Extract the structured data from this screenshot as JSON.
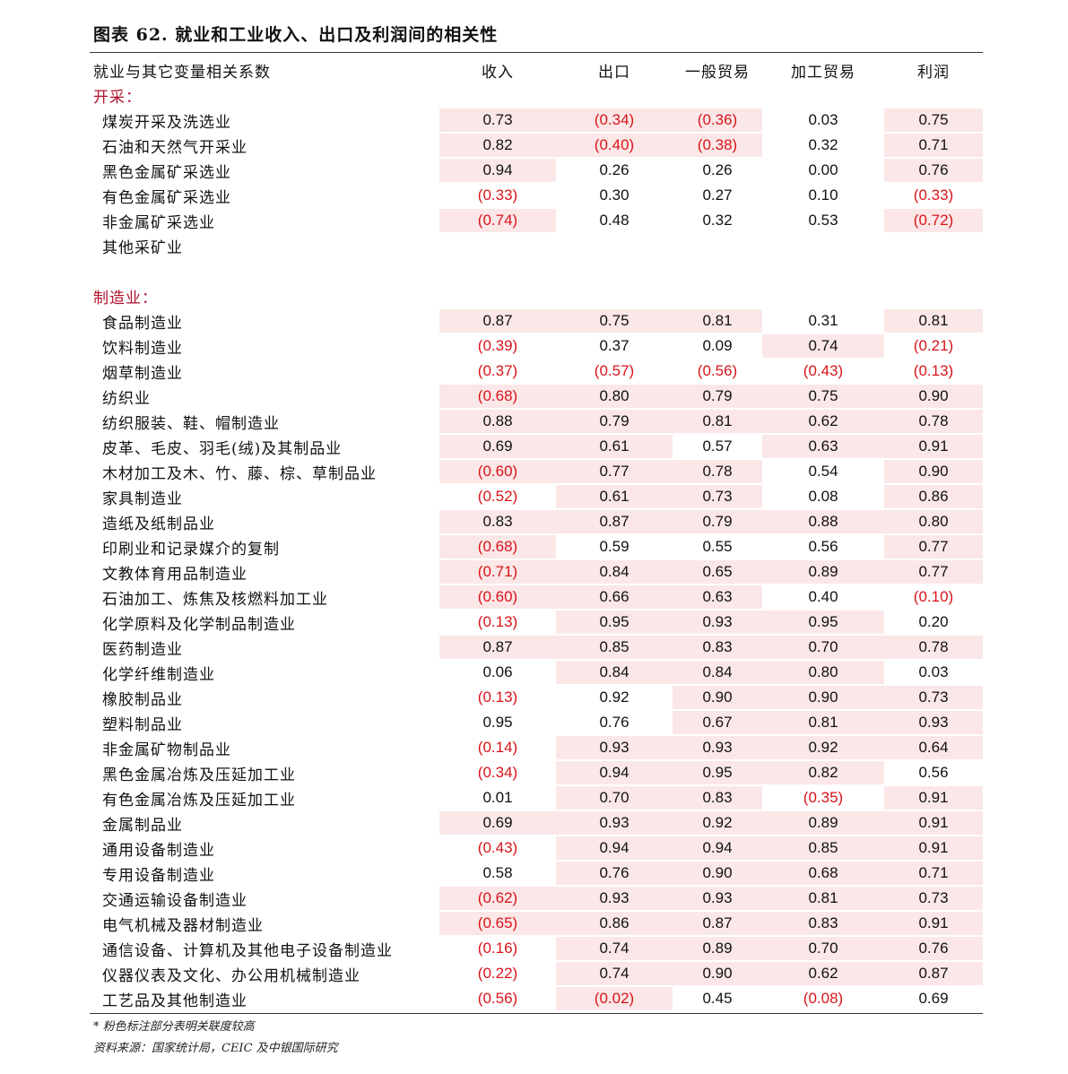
{
  "title": "图表 62. 就业和工业收入、出口及利润间的相关性",
  "colors": {
    "highlight": "#fbe7e7",
    "negative": "#d8141a",
    "section": "#b0122c"
  },
  "header": [
    "就业与其它变量相关系数",
    "收入",
    "出口",
    "一般贸易",
    "加工贸易",
    "利润"
  ],
  "sections": [
    {
      "name": "开采：",
      "rows": [
        {
          "label": "煤炭开采及洗选业",
          "values": [
            "0.73",
            "(0.34)",
            "(0.36)",
            "0.03",
            "0.75"
          ],
          "highlight": [
            1,
            1,
            1,
            0,
            1
          ]
        },
        {
          "label": "石油和天然气开采业",
          "values": [
            "0.82",
            "(0.40)",
            "(0.38)",
            "0.32",
            "0.71"
          ],
          "highlight": [
            1,
            1,
            1,
            0,
            1
          ]
        },
        {
          "label": "黑色金属矿采选业",
          "values": [
            "0.94",
            "0.26",
            "0.26",
            "0.00",
            "0.76"
          ],
          "highlight": [
            1,
            0,
            0,
            0,
            1
          ]
        },
        {
          "label": "有色金属矿采选业",
          "values": [
            "(0.33)",
            "0.30",
            "0.27",
            "0.10",
            "(0.33)"
          ],
          "highlight": [
            0,
            0,
            0,
            0,
            0
          ]
        },
        {
          "label": "非金属矿采选业",
          "values": [
            "(0.74)",
            "0.48",
            "0.32",
            "0.53",
            "(0.72)"
          ],
          "highlight": [
            1,
            0,
            0,
            0,
            1
          ]
        },
        {
          "label": "其他采矿业",
          "values": [
            "",
            "",
            "",
            "",
            ""
          ],
          "highlight": [
            0,
            0,
            0,
            0,
            0
          ]
        }
      ]
    },
    {
      "name": "制造业：",
      "rows": [
        {
          "label": "食品制造业",
          "values": [
            "0.87",
            "0.75",
            "0.81",
            "0.31",
            "0.81"
          ],
          "highlight": [
            1,
            1,
            1,
            0,
            1
          ]
        },
        {
          "label": "饮料制造业",
          "values": [
            "(0.39)",
            "0.37",
            "0.09",
            "0.74",
            "(0.21)"
          ],
          "highlight": [
            0,
            0,
            0,
            1,
            0
          ]
        },
        {
          "label": "烟草制造业",
          "values": [
            "(0.37)",
            "(0.57)",
            "(0.56)",
            "(0.43)",
            "(0.13)"
          ],
          "highlight": [
            0,
            0,
            0,
            0,
            0
          ]
        },
        {
          "label": "纺织业",
          "values": [
            "(0.68)",
            "0.80",
            "0.79",
            "0.75",
            "0.90"
          ],
          "highlight": [
            1,
            1,
            1,
            1,
            1
          ]
        },
        {
          "label": "纺织服装、鞋、帽制造业",
          "values": [
            "0.88",
            "0.79",
            "0.81",
            "0.62",
            "0.78"
          ],
          "highlight": [
            1,
            1,
            1,
            1,
            1
          ]
        },
        {
          "label": "皮革、毛皮、羽毛(绒)及其制品业",
          "values": [
            "0.69",
            "0.61",
            "0.57",
            "0.63",
            "0.91"
          ],
          "highlight": [
            1,
            1,
            0,
            1,
            1
          ]
        },
        {
          "label": "木材加工及木、竹、藤、棕、草制品业",
          "values": [
            "(0.60)",
            "0.77",
            "0.78",
            "0.54",
            "0.90"
          ],
          "highlight": [
            1,
            1,
            1,
            0,
            1
          ]
        },
        {
          "label": "家具制造业",
          "values": [
            "(0.52)",
            "0.61",
            "0.73",
            "0.08",
            "0.86"
          ],
          "highlight": [
            0,
            1,
            1,
            0,
            1
          ]
        },
        {
          "label": "造纸及纸制品业",
          "values": [
            "0.83",
            "0.87",
            "0.79",
            "0.88",
            "0.80"
          ],
          "highlight": [
            1,
            1,
            1,
            1,
            1
          ]
        },
        {
          "label": "印刷业和记录媒介的复制",
          "values": [
            "(0.68)",
            "0.59",
            "0.55",
            "0.56",
            "0.77"
          ],
          "highlight": [
            1,
            0,
            0,
            0,
            1
          ]
        },
        {
          "label": "文教体育用品制造业",
          "values": [
            "(0.71)",
            "0.84",
            "0.65",
            "0.89",
            "0.77"
          ],
          "highlight": [
            1,
            1,
            1,
            1,
            1
          ]
        },
        {
          "label": "石油加工、炼焦及核燃料加工业",
          "values": [
            "(0.60)",
            "0.66",
            "0.63",
            "0.40",
            "(0.10)"
          ],
          "highlight": [
            1,
            1,
            1,
            0,
            0
          ]
        },
        {
          "label": "化学原料及化学制品制造业",
          "values": [
            "(0.13)",
            "0.95",
            "0.93",
            "0.95",
            "0.20"
          ],
          "highlight": [
            0,
            1,
            1,
            1,
            0
          ]
        },
        {
          "label": "医药制造业",
          "values": [
            "0.87",
            "0.85",
            "0.83",
            "0.70",
            "0.78"
          ],
          "highlight": [
            1,
            1,
            1,
            1,
            1
          ]
        },
        {
          "label": "化学纤维制造业",
          "values": [
            "0.06",
            "0.84",
            "0.84",
            "0.80",
            "0.03"
          ],
          "highlight": [
            0,
            1,
            1,
            1,
            0
          ]
        },
        {
          "label": "橡胶制品业",
          "values": [
            "(0.13)",
            "0.92",
            "0.90",
            "0.90",
            "0.73"
          ],
          "highlight": [
            0,
            0,
            1,
            1,
            1
          ]
        },
        {
          "label": "塑料制品业",
          "values": [
            "0.95",
            "0.76",
            "0.67",
            "0.81",
            "0.93"
          ],
          "highlight": [
            0,
            0,
            1,
            1,
            1
          ]
        },
        {
          "label": "非金属矿物制品业",
          "values": [
            "(0.14)",
            "0.93",
            "0.93",
            "0.92",
            "0.64"
          ],
          "highlight": [
            0,
            1,
            1,
            1,
            1
          ]
        },
        {
          "label": "黑色金属冶炼及压延加工业",
          "values": [
            "(0.34)",
            "0.94",
            "0.95",
            "0.82",
            "0.56"
          ],
          "highlight": [
            0,
            1,
            1,
            1,
            0
          ]
        },
        {
          "label": "有色金属冶炼及压延加工业",
          "values": [
            "0.01",
            "0.70",
            "0.83",
            "(0.35)",
            "0.91"
          ],
          "highlight": [
            0,
            1,
            1,
            0,
            1
          ]
        },
        {
          "label": "金属制品业",
          "values": [
            "0.69",
            "0.93",
            "0.92",
            "0.89",
            "0.91"
          ],
          "highlight": [
            1,
            1,
            1,
            1,
            1
          ]
        },
        {
          "label": "通用设备制造业",
          "values": [
            "(0.43)",
            "0.94",
            "0.94",
            "0.85",
            "0.91"
          ],
          "highlight": [
            0,
            1,
            1,
            1,
            1
          ]
        },
        {
          "label": "专用设备制造业",
          "values": [
            "0.58",
            "0.76",
            "0.90",
            "0.68",
            "0.71"
          ],
          "highlight": [
            0,
            1,
            1,
            1,
            1
          ]
        },
        {
          "label": "交通运输设备制造业",
          "values": [
            "(0.62)",
            "0.93",
            "0.93",
            "0.81",
            "0.73"
          ],
          "highlight": [
            1,
            1,
            1,
            1,
            1
          ]
        },
        {
          "label": "电气机械及器材制造业",
          "values": [
            "(0.65)",
            "0.86",
            "0.87",
            "0.83",
            "0.91"
          ],
          "highlight": [
            1,
            1,
            1,
            1,
            1
          ]
        },
        {
          "label": "通信设备、计算机及其他电子设备制造业",
          "values": [
            "(0.16)",
            "0.74",
            "0.89",
            "0.70",
            "0.76"
          ],
          "highlight": [
            0,
            1,
            1,
            1,
            1
          ]
        },
        {
          "label": "仪器仪表及文化、办公用机械制造业",
          "values": [
            "(0.22)",
            "0.74",
            "0.90",
            "0.62",
            "0.87"
          ],
          "highlight": [
            0,
            1,
            1,
            1,
            1
          ]
        },
        {
          "label": "工艺品及其他制造业",
          "values": [
            "(0.56)",
            "(0.02)",
            "0.45",
            "(0.08)",
            "0.69"
          ],
          "highlight": [
            0,
            1,
            0,
            0,
            0
          ]
        }
      ]
    }
  ],
  "footnotes": {
    "note": "* 粉色标注部分表明关联度较高",
    "source": "资料来源：国家统计局，CEIC 及中银国际研究"
  }
}
